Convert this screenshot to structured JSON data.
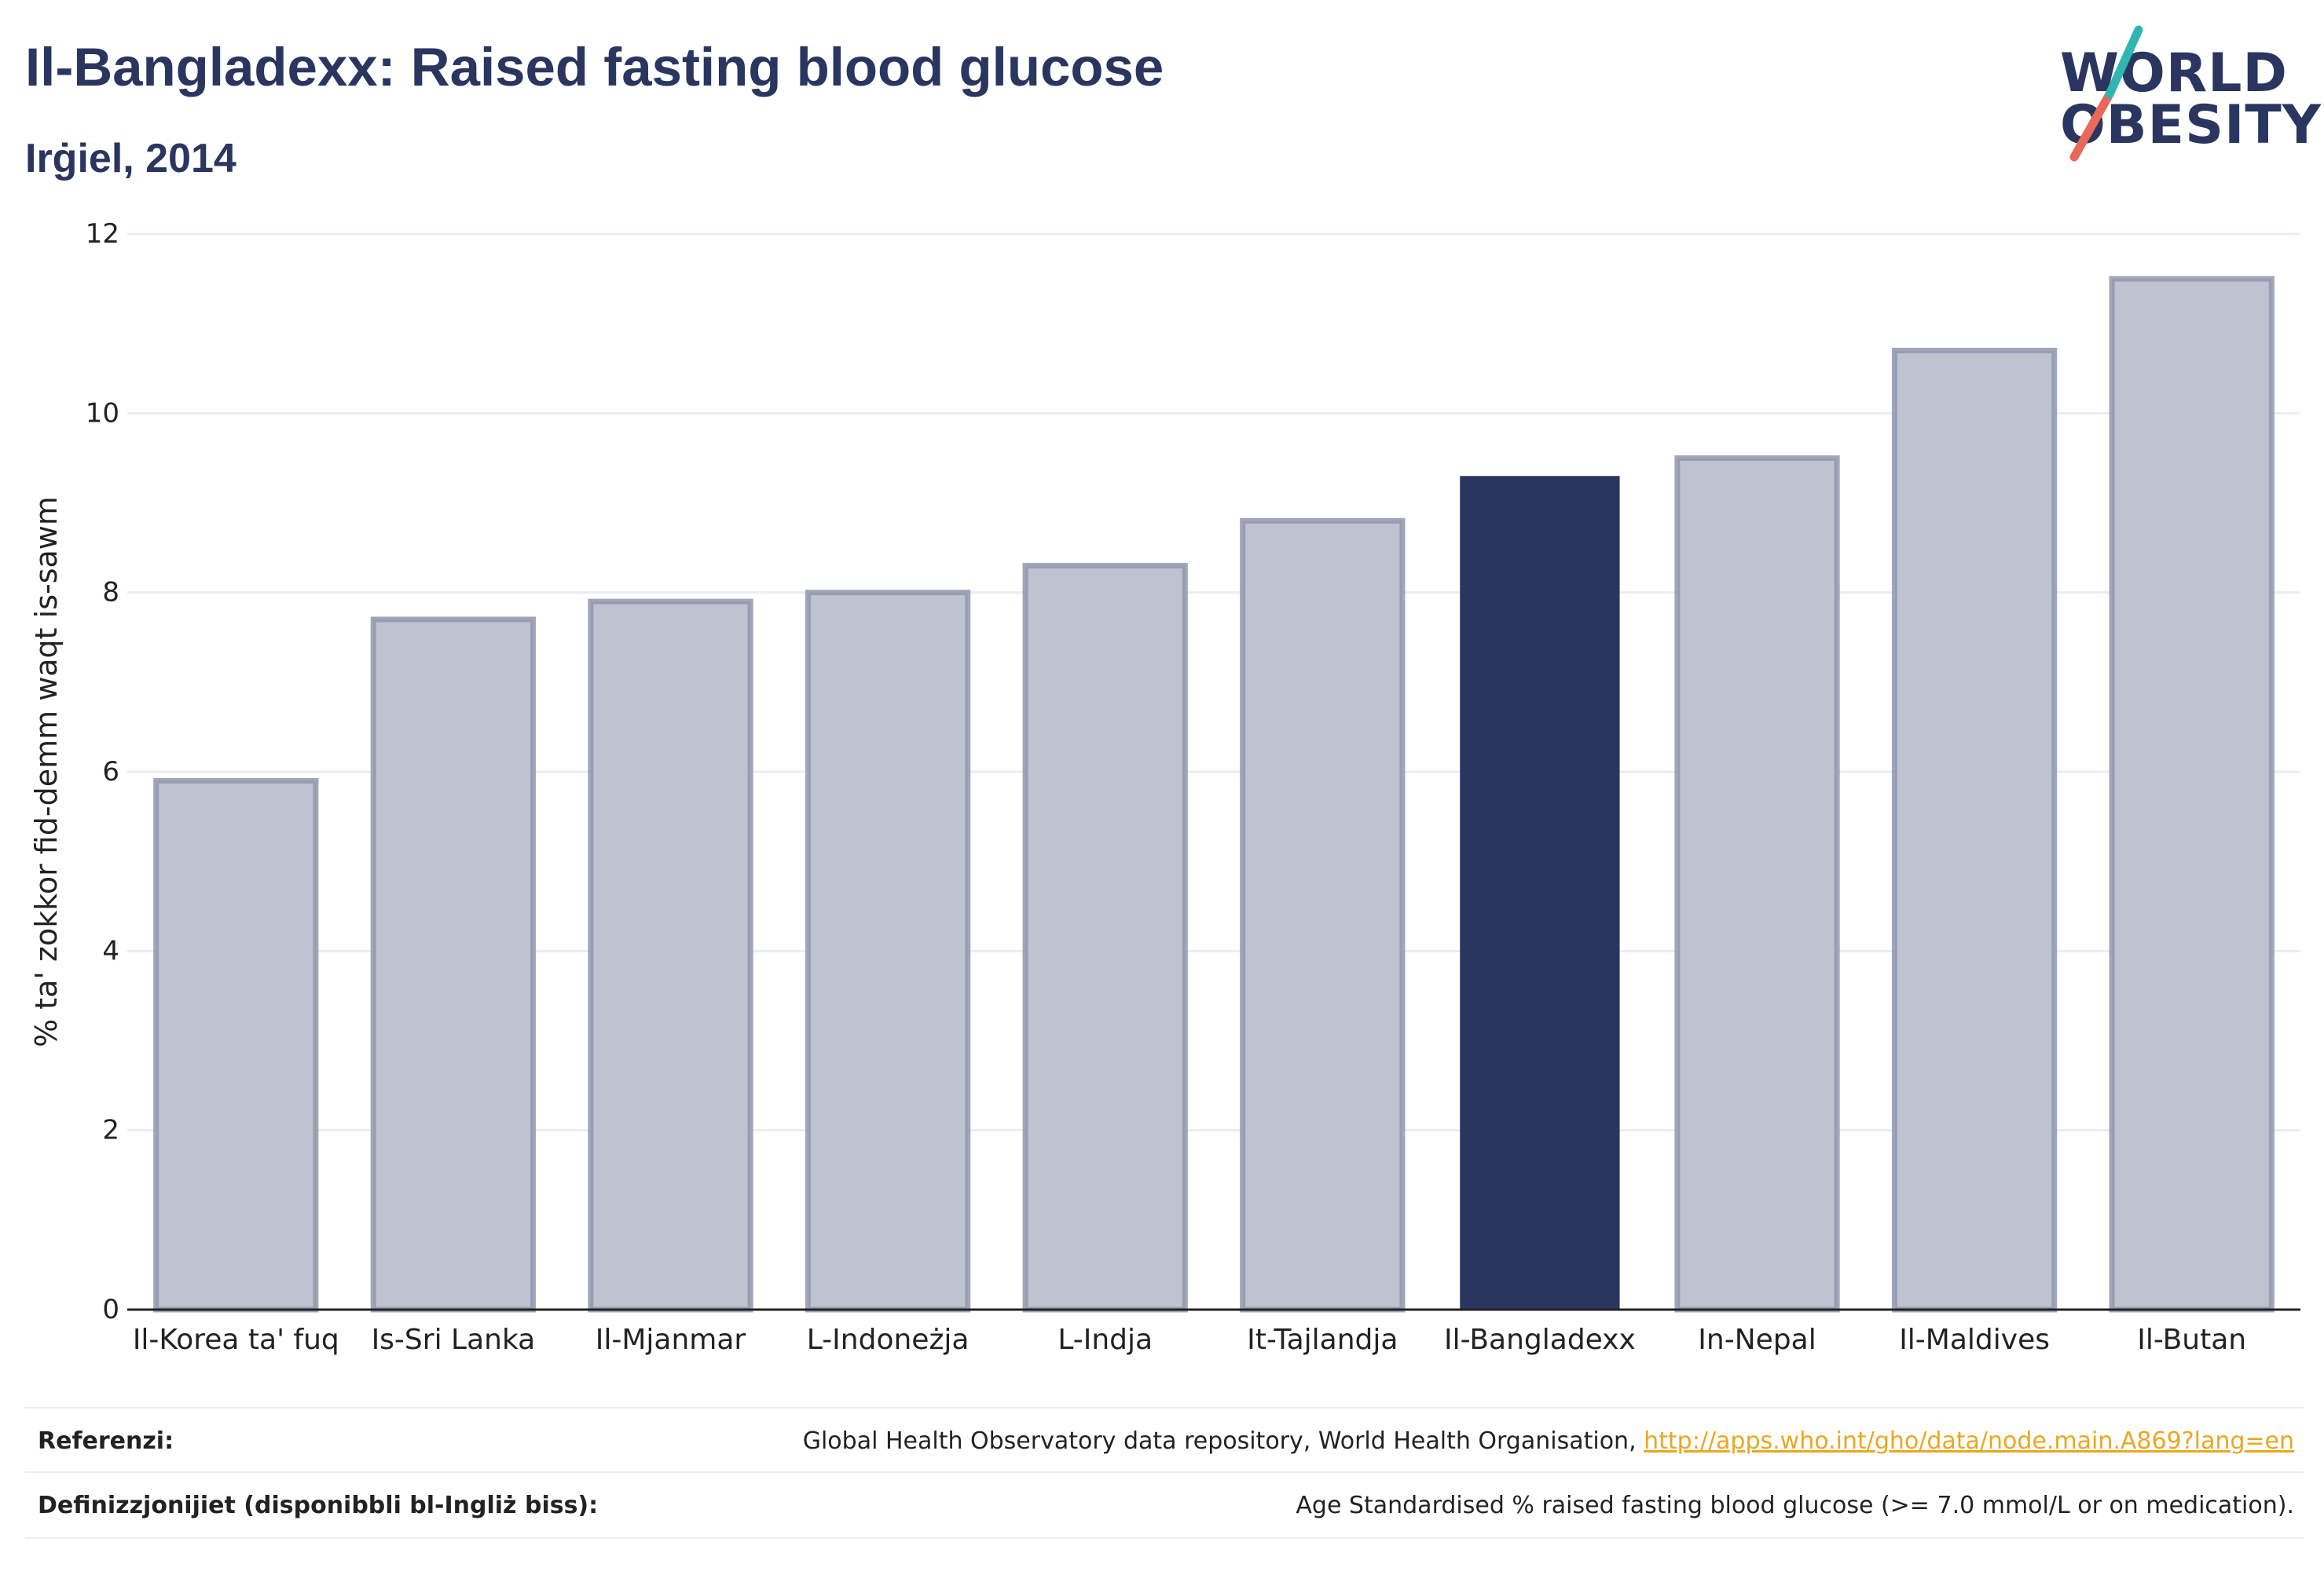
{
  "header": {
    "title": "Il-Bangladexx: Raised fasting blood glucose",
    "subtitle": "Irġiel, 2014"
  },
  "logo": {
    "line1": "WORLD",
    "line2": "OBESITY",
    "accent_teal": "#2fb6b0",
    "accent_red": "#e8685a"
  },
  "colors": {
    "navy": "#2a3560",
    "bar_muted": "#bfc2cf",
    "bar_border": "#9197ad",
    "grid": "#ebedf3"
  },
  "chart_data": {
    "type": "bar",
    "title": "Il-Bangladexx: Raised fasting blood glucose",
    "subtitle": "Irġiel, 2014",
    "ylabel": "% ta' zokkor fid-demm waqt is-sawm",
    "xlabel": "",
    "ylim": [
      0,
      12
    ],
    "yticks": [
      0,
      2,
      4,
      6,
      8,
      10,
      12
    ],
    "grid": true,
    "categories": [
      "Il-Korea ta' fuq",
      "Is-Sri Lanka",
      "Il-Mjanmar",
      "L-Indoneżja",
      "L-Indja",
      "It-Tajlandja",
      "Il-Bangladexx",
      "In-Nepal",
      "Il-Maldives",
      "Il-Butan"
    ],
    "values": [
      5.9,
      7.7,
      7.9,
      8.0,
      8.3,
      8.8,
      9.3,
      9.5,
      10.7,
      11.5
    ],
    "highlight": "Il-Bangladexx"
  },
  "footer": {
    "ref_label": "Referenzi:",
    "ref_text": "Global Health Observatory data repository, World Health Organisation, ",
    "ref_link": "http://apps.who.int/gho/data/node.main.A869?lang=en",
    "def_label": "Definizzjonijiet (disponibbli bl-Ingliż biss):",
    "def_text": "Age Standardised % raised fasting blood glucose (>= 7.0 mmol/L or on medication)."
  }
}
